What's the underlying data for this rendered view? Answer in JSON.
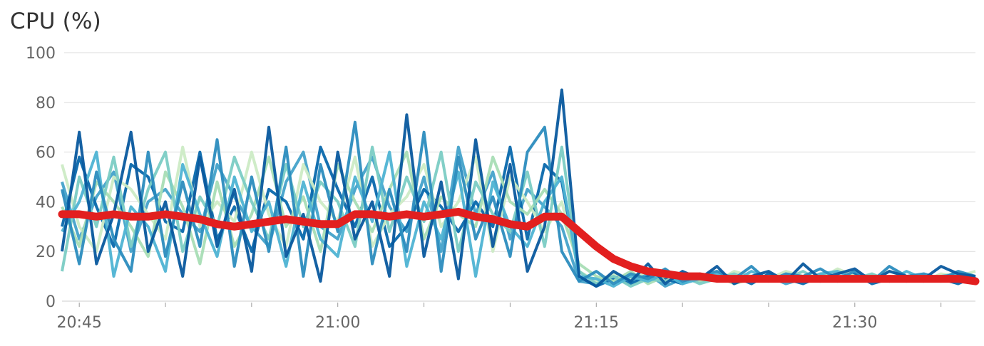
{
  "title": "CPU (%)",
  "chart_data": {
    "type": "line",
    "title": "CPU (%)",
    "ylabel": "CPU (%)",
    "xlabel": "",
    "ylim": [
      0,
      100
    ],
    "yticks": [
      0,
      20,
      40,
      60,
      80,
      100
    ],
    "xticks": [
      "20:45",
      "21:00",
      "21:15",
      "21:30"
    ],
    "grid": true,
    "colors": {
      "average": "#e21f1f",
      "hosts": [
        "#08589e",
        "#2b8cbe",
        "#4eb3d3",
        "#7bccc4",
        "#a8ddb5",
        "#ccebc5",
        "#0868ac",
        "#43a2ca"
      ]
    },
    "x": [
      "20:44",
      "20:45",
      "20:46",
      "20:47",
      "20:48",
      "20:49",
      "20:50",
      "20:51",
      "20:52",
      "20:53",
      "20:54",
      "20:55",
      "20:56",
      "20:57",
      "20:58",
      "20:59",
      "21:00",
      "21:01",
      "21:02",
      "21:03",
      "21:04",
      "21:05",
      "21:06",
      "21:07",
      "21:08",
      "21:09",
      "21:10",
      "21:11",
      "21:12",
      "21:13",
      "21:14",
      "21:15",
      "21:16",
      "21:17",
      "21:18",
      "21:19",
      "21:20",
      "21:21",
      "21:22",
      "21:23",
      "21:24",
      "21:25",
      "21:26",
      "21:27",
      "21:28",
      "21:29",
      "21:30",
      "21:31",
      "21:32",
      "21:33",
      "21:34",
      "21:35",
      "21:36",
      "21:37"
    ],
    "series": [
      {
        "values": [
          35,
          35,
          34,
          35,
          34,
          34,
          35,
          34,
          33,
          31,
          30,
          31,
          32,
          33,
          32,
          31,
          31,
          35,
          35,
          34,
          35,
          34,
          35,
          36,
          34,
          33,
          31,
          30,
          34,
          34,
          28,
          22,
          17,
          14,
          12,
          11,
          10,
          10,
          9,
          9,
          9,
          9,
          9,
          9,
          9,
          9,
          9,
          9,
          9,
          9,
          9,
          9,
          9,
          8
        ]
      },
      {
        "values": [
          20,
          68,
          15,
          35,
          68,
          20,
          40,
          10,
          58,
          22,
          45,
          12,
          70,
          18,
          35,
          8,
          60,
          25,
          40,
          10,
          75,
          18,
          48,
          9,
          65,
          22,
          55,
          12,
          30,
          85,
          10,
          6,
          12,
          8,
          15,
          7,
          12,
          9,
          14,
          7,
          10,
          12,
          8,
          15,
          9,
          11,
          13,
          8,
          12,
          10,
          9,
          14,
          11,
          10
        ]
      },
      {
        "values": [
          45,
          15,
          52,
          25,
          12,
          60,
          18,
          48,
          22,
          65,
          14,
          50,
          20,
          62,
          10,
          55,
          28,
          72,
          15,
          45,
          20,
          68,
          12,
          58,
          25,
          42,
          18,
          60,
          70,
          20,
          8,
          12,
          7,
          11,
          9,
          13,
          8,
          10,
          12,
          9,
          14,
          8,
          11,
          10,
          13,
          9,
          12,
          8,
          14,
          10,
          11,
          9,
          12,
          10
        ]
      },
      {
        "values": [
          28,
          40,
          60,
          10,
          38,
          30,
          12,
          55,
          35,
          18,
          50,
          28,
          40,
          14,
          48,
          25,
          18,
          50,
          32,
          60,
          14,
          40,
          25,
          52,
          10,
          48,
          30,
          22,
          40,
          50,
          10,
          9,
          6,
          10,
          8,
          11,
          7,
          9,
          11,
          8,
          12,
          9,
          10,
          8,
          11,
          12,
          9,
          10,
          8,
          12,
          9,
          10,
          11,
          9
        ]
      },
      {
        "values": [
          12,
          50,
          30,
          58,
          22,
          45,
          60,
          20,
          42,
          30,
          58,
          40,
          25,
          55,
          30,
          48,
          40,
          22,
          62,
          28,
          50,
          32,
          60,
          20,
          48,
          35,
          28,
          52,
          22,
          62,
          12,
          7,
          10,
          6,
          9,
          8,
          10,
          7,
          9,
          11,
          8,
          10,
          9,
          12,
          8,
          10,
          9,
          11,
          8,
          10,
          9,
          8,
          10,
          9
        ]
      },
      {
        "values": [
          38,
          22,
          48,
          40,
          30,
          18,
          52,
          38,
          15,
          48,
          22,
          35,
          58,
          30,
          42,
          20,
          55,
          40,
          28,
          45,
          60,
          25,
          42,
          35,
          30,
          58,
          40,
          35,
          45,
          35,
          15,
          10,
          8,
          12,
          7,
          10,
          9,
          8,
          10,
          7,
          9,
          10,
          8,
          9,
          11,
          8,
          10,
          9,
          8,
          9,
          10,
          8,
          9,
          8
        ]
      },
      {
        "values": [
          55,
          30,
          20,
          50,
          45,
          35,
          25,
          62,
          30,
          40,
          32,
          60,
          35,
          22,
          55,
          40,
          32,
          58,
          22,
          35,
          42,
          55,
          30,
          40,
          58,
          20,
          50,
          40,
          28,
          40,
          12,
          8,
          11,
          9,
          12,
          8,
          11,
          10,
          8,
          12,
          10,
          9,
          12,
          10,
          9,
          13,
          10,
          9,
          12,
          10,
          8,
          11,
          10,
          12
        ]
      },
      {
        "values": [
          30,
          58,
          38,
          22,
          55,
          50,
          32,
          28,
          60,
          25,
          38,
          20,
          45,
          40,
          25,
          62,
          45,
          30,
          50,
          22,
          30,
          45,
          38,
          28,
          40,
          30,
          62,
          25,
          55,
          48,
          10,
          6,
          9,
          7,
          10,
          9,
          7,
          11,
          8,
          10,
          7,
          11,
          9,
          7,
          10,
          8,
          11,
          7,
          9,
          8,
          10,
          9,
          7,
          10
        ]
      },
      {
        "values": [
          48,
          25,
          42,
          52,
          20,
          40,
          45,
          35,
          28,
          55,
          42,
          30,
          22,
          48,
          60,
          30,
          25,
          45,
          58,
          38,
          28,
          50,
          20,
          62,
          35,
          52,
          25,
          45,
          38,
          30,
          8,
          7,
          10,
          8,
          11,
          6,
          9,
          8,
          10,
          9,
          8,
          10,
          7,
          9,
          8,
          10,
          9,
          8,
          10,
          9,
          8,
          10,
          9,
          8
        ]
      }
    ]
  }
}
